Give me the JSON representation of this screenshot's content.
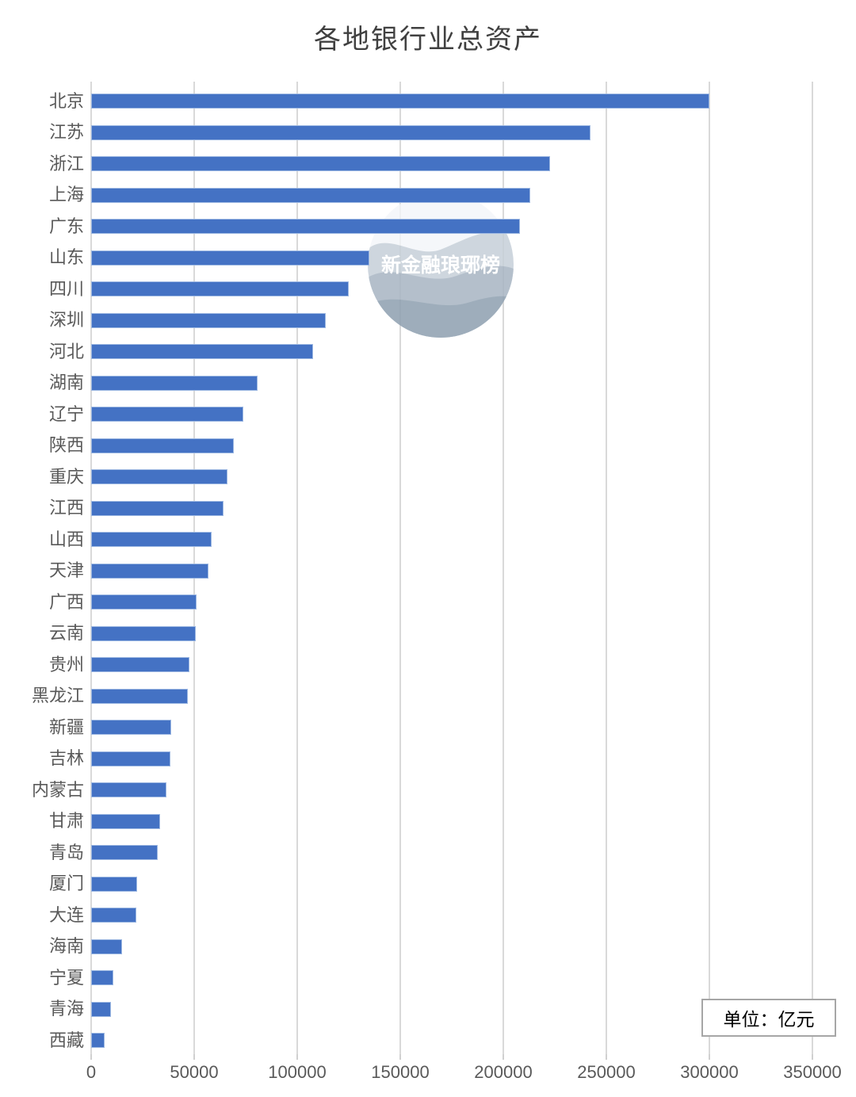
{
  "title": "各地银行业总资产",
  "watermark_text": "新金融琅琊榜",
  "unit_label": "单位：亿元",
  "colors": {
    "bar_fill": "#4472C4",
    "bar_edge": "#9db8e2",
    "gridline": "#d9d9d9",
    "axis_text": "#595959",
    "title_text": "#404040",
    "unit_box_border": "#a6a6a6",
    "watermark_waves": [
      "#f3f5f8",
      "#c3cdd7",
      "#a6b4c2",
      "#8ea0b0"
    ],
    "watermark_text_color": "#ffffff"
  },
  "chart_data": {
    "type": "bar",
    "orientation": "horizontal",
    "title": "各地银行业总资产",
    "unit": "亿元",
    "legend": "none",
    "grid": "vertical-only",
    "xlim": [
      0,
      350000
    ],
    "xticks": [
      0,
      50000,
      100000,
      150000,
      200000,
      250000,
      300000,
      350000
    ],
    "categories": [
      "北京",
      "江苏",
      "浙江",
      "上海",
      "广东",
      "山东",
      "四川",
      "深圳",
      "河北",
      "湖南",
      "辽宁",
      "陕西",
      "重庆",
      "江西",
      "山西",
      "天津",
      "广西",
      "云南",
      "贵州",
      "黑龙江",
      "新疆",
      "吉林",
      "内蒙古",
      "甘肃",
      "青岛",
      "厦门",
      "大连",
      "海南",
      "宁夏",
      "青海",
      "西藏"
    ],
    "values": [
      300000,
      242300,
      222600,
      213200,
      208100,
      134900,
      125100,
      113800,
      107800,
      80700,
      73900,
      69400,
      66000,
      64100,
      58600,
      57000,
      51300,
      50800,
      47800,
      47000,
      38700,
      38400,
      36600,
      33600,
      32400,
      22300,
      22000,
      15100,
      10800,
      9500,
      6600
    ]
  }
}
